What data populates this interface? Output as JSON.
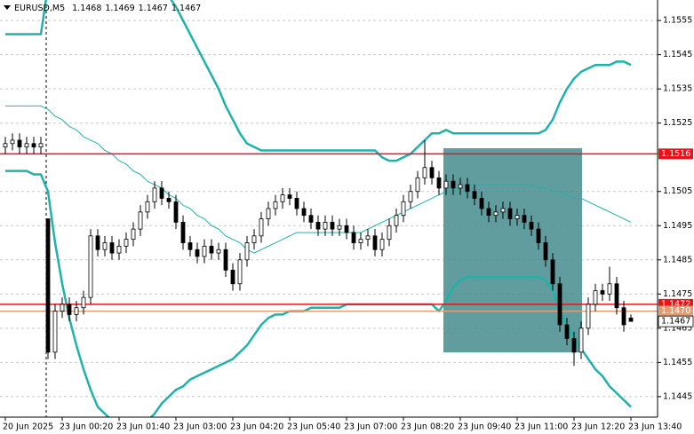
{
  "chart_data": {
    "type": "candlestick",
    "header": {
      "symbol": "EURUSD,M5"
    },
    "categories": [
      "20 Jun 2025",
      null,
      null,
      null,
      null,
      null,
      null,
      null,
      "23 Jun 00:20",
      null,
      null,
      null,
      null,
      null,
      null,
      null,
      "23 Jun 01:40",
      null,
      null,
      null,
      null,
      null,
      null,
      null,
      "23 Jun 03:00",
      null,
      null,
      null,
      null,
      null,
      null,
      null,
      "23 Jun 04:20",
      null,
      null,
      null,
      null,
      null,
      null,
      null,
      "23 Jun 05:40",
      null,
      null,
      null,
      null,
      null,
      null,
      null,
      "23 Jun 07:00",
      null,
      null,
      null,
      null,
      null,
      null,
      null,
      "23 Jun 08:20",
      null,
      null,
      null,
      null,
      null,
      null,
      null,
      "23 Jun 09:40",
      null,
      null,
      null,
      null,
      null,
      null,
      null,
      "23 Jun 11:00",
      null,
      null,
      null,
      null,
      null,
      null,
      null,
      "23 Jun 12:20",
      null,
      null,
      null,
      null,
      null,
      null,
      null,
      "23 Jun 13:40"
    ],
    "open": [
      1.1518,
      1.1519,
      1.152,
      1.1518,
      1.1519,
      1.1518,
      1.1497,
      1.1458,
      1.147,
      1.1472,
      1.1469,
      1.1471,
      1.1474,
      1.1492,
      1.1488,
      1.149,
      1.1487,
      1.1489,
      1.1491,
      1.1494,
      1.1499,
      1.1502,
      1.1506,
      1.1503,
      1.1502,
      1.1496,
      1.149,
      1.1488,
      1.1486,
      1.1489,
      1.1487,
      1.1488,
      1.1482,
      1.1478,
      1.1485,
      1.149,
      1.1492,
      1.1497,
      1.15,
      1.1502,
      1.1504,
      1.1503,
      1.15,
      1.1498,
      1.1496,
      1.1494,
      1.1496,
      1.1494,
      1.1495,
      1.1493,
      1.149,
      1.1491,
      1.1492,
      1.1488,
      1.1491,
      1.1495,
      1.1498,
      1.1502,
      1.1505,
      1.1509,
      1.1512,
      1.1509,
      1.1506,
      1.1508,
      1.1506,
      1.1507,
      1.1505,
      1.1503,
      1.15,
      1.1498,
      1.1499,
      1.15,
      1.1497,
      1.1498,
      1.1496,
      1.1494,
      1.149,
      1.1485,
      1.1478,
      1.1466,
      1.1462,
      1.1458,
      1.1465,
      1.1472,
      1.1476,
      1.1475,
      1.1478,
      1.1471,
      1.1468
    ],
    "high": [
      1.1521,
      1.1522,
      1.1522,
      1.1521,
      1.1521,
      1.1521,
      1.1497,
      1.1472,
      1.1474,
      1.1474,
      1.1473,
      1.1476,
      1.1494,
      1.1494,
      1.1492,
      1.1492,
      1.1491,
      1.1493,
      1.1496,
      1.1501,
      1.1504,
      1.1508,
      1.1508,
      1.1505,
      1.1504,
      1.1498,
      1.1492,
      1.149,
      1.1491,
      1.1491,
      1.149,
      1.149,
      1.1484,
      1.1487,
      1.1492,
      1.1494,
      1.1499,
      1.1502,
      1.1504,
      1.1506,
      1.1506,
      1.1505,
      1.1502,
      1.15,
      1.1498,
      1.1498,
      1.1498,
      1.1497,
      1.1497,
      1.1495,
      1.1493,
      1.1494,
      1.1494,
      1.1493,
      1.1497,
      1.15,
      1.1504,
      1.1507,
      1.1511,
      1.152,
      1.1514,
      1.1511,
      1.151,
      1.151,
      1.1509,
      1.1509,
      1.1507,
      1.1505,
      1.1502,
      1.1501,
      1.1502,
      1.1502,
      1.15,
      1.15,
      1.1498,
      1.1496,
      1.1492,
      1.1487,
      1.148,
      1.1468,
      1.1464,
      1.1467,
      1.1474,
      1.1478,
      1.1478,
      1.1483,
      1.148,
      1.1473,
      1.1469
    ],
    "low": [
      1.1516,
      1.1517,
      1.1516,
      1.1516,
      1.1516,
      1.1516,
      1.1456,
      1.1456,
      1.1468,
      1.1467,
      1.1467,
      1.1469,
      1.1472,
      1.1486,
      1.1486,
      1.1485,
      1.1485,
      1.1487,
      1.1489,
      1.1492,
      1.1497,
      1.15,
      1.1501,
      1.15,
      1.1494,
      1.1488,
      1.1486,
      1.1484,
      1.1484,
      1.1485,
      1.1485,
      1.148,
      1.1476,
      1.1476,
      1.1483,
      1.1488,
      1.149,
      1.1495,
      1.1498,
      1.15,
      1.1501,
      1.1498,
      1.1496,
      1.1494,
      1.1492,
      1.1492,
      1.1492,
      1.1492,
      1.1491,
      1.1488,
      1.1488,
      1.1489,
      1.1486,
      1.1486,
      1.1489,
      1.1493,
      1.1496,
      1.15,
      1.1503,
      1.1507,
      1.1507,
      1.1504,
      1.1504,
      1.1504,
      1.1504,
      1.1503,
      1.1501,
      1.1498,
      1.1496,
      1.1496,
      1.1497,
      1.1495,
      1.1495,
      1.1494,
      1.1492,
      1.1488,
      1.1483,
      1.1476,
      1.1464,
      1.146,
      1.1454,
      1.1456,
      1.1463,
      1.147,
      1.1473,
      1.1473,
      1.1469,
      1.1464,
      1.1467
    ],
    "close": [
      1.1519,
      1.152,
      1.1518,
      1.1519,
      1.1518,
      1.1519,
      1.1458,
      1.147,
      1.1472,
      1.1469,
      1.1471,
      1.1474,
      1.1492,
      1.1488,
      1.149,
      1.1487,
      1.1489,
      1.1491,
      1.1494,
      1.1499,
      1.1502,
      1.1506,
      1.1503,
      1.1502,
      1.1496,
      1.149,
      1.1488,
      1.1486,
      1.1489,
      1.1487,
      1.1488,
      1.1482,
      1.1478,
      1.1485,
      1.149,
      1.1492,
      1.1497,
      1.15,
      1.1502,
      1.1504,
      1.1503,
      1.15,
      1.1498,
      1.1496,
      1.1494,
      1.1496,
      1.1494,
      1.1495,
      1.1493,
      1.149,
      1.1491,
      1.1492,
      1.1488,
      1.1491,
      1.1495,
      1.1498,
      1.1502,
      1.1505,
      1.1509,
      1.1512,
      1.1509,
      1.1506,
      1.1508,
      1.1506,
      1.1507,
      1.1505,
      1.1503,
      1.15,
      1.1498,
      1.1499,
      1.15,
      1.1497,
      1.1498,
      1.1496,
      1.1494,
      1.149,
      1.1485,
      1.1478,
      1.1466,
      1.1462,
      1.1458,
      1.1465,
      1.1472,
      1.1476,
      1.1475,
      1.1478,
      1.1471,
      1.1466,
      1.1467
    ],
    "bands": {
      "color": "#20b2aa",
      "upper": [
        1.1551,
        1.1551,
        1.1551,
        1.1551,
        1.1551,
        1.1551,
        1.1565,
        1.1568,
        1.157,
        1.1572,
        1.1573,
        1.1574,
        1.1574,
        1.1574,
        1.1573,
        1.1572,
        1.1571,
        1.157,
        1.1569,
        1.1567,
        1.1566,
        1.1565,
        1.1563,
        1.1562,
        1.1559,
        1.1555,
        1.1551,
        1.1547,
        1.1543,
        1.1539,
        1.1535,
        1.153,
        1.1526,
        1.1522,
        1.1519,
        1.1518,
        1.1517,
        1.1517,
        1.1517,
        1.1517,
        1.1517,
        1.1517,
        1.1517,
        1.1517,
        1.1517,
        1.1517,
        1.1517,
        1.1517,
        1.1517,
        1.1517,
        1.1517,
        1.1517,
        1.1517,
        1.1515,
        1.1514,
        1.1514,
        1.1515,
        1.1516,
        1.1518,
        1.152,
        1.1522,
        1.1522,
        1.1523,
        1.1522,
        1.1522,
        1.1522,
        1.1522,
        1.1522,
        1.1522,
        1.1522,
        1.1522,
        1.1522,
        1.1522,
        1.1522,
        1.1522,
        1.1522,
        1.1523,
        1.1526,
        1.1531,
        1.1535,
        1.1538,
        1.154,
        1.1541,
        1.1542,
        1.1542,
        1.1542,
        1.1543,
        1.1543,
        1.1542
      ],
      "middle": [
        1.153,
        1.153,
        1.153,
        1.153,
        1.153,
        1.153,
        1.1529,
        1.1527,
        1.1526,
        1.1524,
        1.1523,
        1.1521,
        1.152,
        1.1519,
        1.1517,
        1.1516,
        1.1514,
        1.1513,
        1.1511,
        1.151,
        1.1508,
        1.1507,
        1.1506,
        1.1504,
        1.1503,
        1.1501,
        1.15,
        1.1498,
        1.1497,
        1.1495,
        1.1494,
        1.1492,
        1.1491,
        1.149,
        1.1488,
        1.1487,
        1.1488,
        1.1489,
        1.149,
        1.1491,
        1.1492,
        1.1493,
        1.1493,
        1.1493,
        1.1493,
        1.1493,
        1.1493,
        1.1493,
        1.1493,
        1.1493,
        1.1493,
        1.1494,
        1.1495,
        1.1496,
        1.1497,
        1.1498,
        1.1499,
        1.15,
        1.1501,
        1.1502,
        1.1503,
        1.1504,
        1.1505,
        1.1505,
        1.1506,
        1.1507,
        1.1507,
        1.1507,
        1.1507,
        1.1507,
        1.1507,
        1.1507,
        1.1507,
        1.1507,
        1.1507,
        1.1506,
        1.1506,
        1.1505,
        1.1505,
        1.1504,
        1.1503,
        1.1503,
        1.1502,
        1.1501,
        1.15,
        1.1499,
        1.1498,
        1.1497,
        1.1496
      ],
      "lower": [
        1.1511,
        1.1511,
        1.1511,
        1.1511,
        1.151,
        1.151,
        1.1505,
        1.149,
        1.1478,
        1.1468,
        1.146,
        1.1453,
        1.1447,
        1.1442,
        1.144,
        1.1438,
        1.1436,
        1.1435,
        1.1435,
        1.1436,
        1.1438,
        1.144,
        1.1443,
        1.1445,
        1.1447,
        1.1448,
        1.145,
        1.1451,
        1.1452,
        1.1453,
        1.1454,
        1.1455,
        1.1456,
        1.1458,
        1.146,
        1.1463,
        1.1466,
        1.1468,
        1.1469,
        1.1469,
        1.147,
        1.147,
        1.147,
        1.1471,
        1.1471,
        1.1471,
        1.1471,
        1.1471,
        1.1472,
        1.1472,
        1.1472,
        1.1472,
        1.1472,
        1.1472,
        1.1472,
        1.1472,
        1.1472,
        1.1472,
        1.1472,
        1.1472,
        1.1472,
        1.147,
        1.1473,
        1.1477,
        1.1479,
        1.148,
        1.148,
        1.148,
        1.148,
        1.148,
        1.148,
        1.148,
        1.148,
        1.148,
        1.148,
        1.148,
        1.1479,
        1.1476,
        1.147,
        1.1466,
        1.1462,
        1.1459,
        1.1456,
        1.1453,
        1.1451,
        1.1448,
        1.1446,
        1.1444,
        1.1442
      ]
    },
    "levels": [
      {
        "value": 1.1516,
        "color": "#e8141a"
      },
      {
        "value": 1.1472,
        "color": "#e8141a"
      },
      {
        "value": 1.147,
        "label": "1.1470",
        "color": "#e39b72"
      }
    ],
    "up_color": "#ffffff",
    "down_color": "#000000",
    "wick_color": "#000000",
    "ylim": [
      1.1439,
      1.1561
    ],
    "yticks": [
      1.1445,
      1.1455,
      1.1465,
      1.1475,
      1.1485,
      1.1495,
      1.1505,
      1.1525,
      1.1535,
      1.1545,
      1.1555
    ],
    "grid": true
  }
}
